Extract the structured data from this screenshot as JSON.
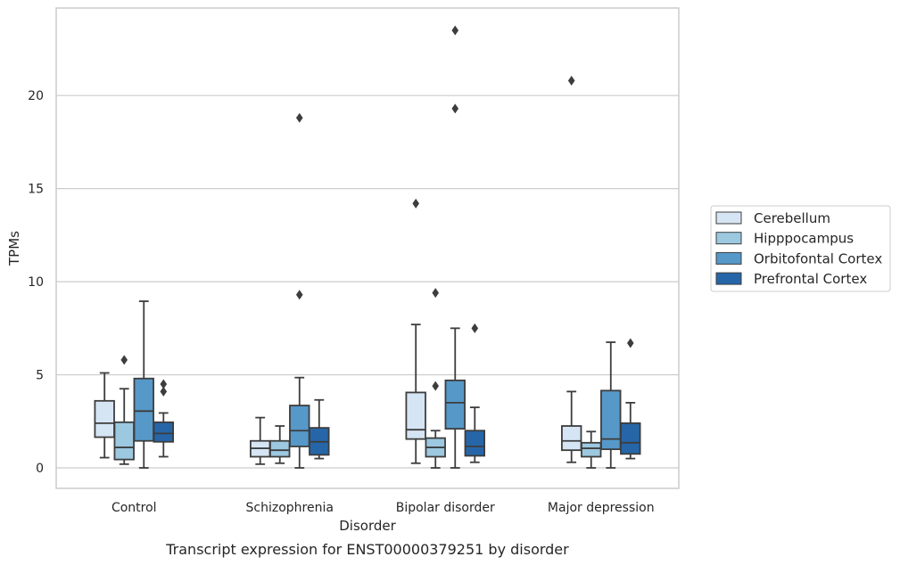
{
  "chart_data": {
    "type": "box",
    "title": "",
    "caption": "Transcript expression for ENST00000379251 by disorder",
    "xlabel": "Disorder",
    "ylabel": "TPMs",
    "ylim": [
      -1.1,
      24.7
    ],
    "yticks": [
      "0",
      "5",
      "10",
      "15",
      "20"
    ],
    "ytick_values": [
      0,
      5,
      10,
      15,
      20
    ],
    "grid": "horizontal",
    "legend_position": "right",
    "categories": [
      "Control",
      "Schizophrenia",
      "Bipolar disorder",
      "Major depression"
    ],
    "series": [
      {
        "name": "Cerebellum",
        "color": "#d6e5f4",
        "boxes": [
          {
            "whislo": 0.55,
            "q1": 1.65,
            "med": 2.4,
            "q3": 3.6,
            "whishi": 5.1,
            "fliers": []
          },
          {
            "whislo": 0.2,
            "q1": 0.6,
            "med": 1.05,
            "q3": 1.45,
            "whishi": 2.7,
            "fliers": []
          },
          {
            "whislo": 0.25,
            "q1": 1.55,
            "med": 2.05,
            "q3": 4.05,
            "whishi": 7.7,
            "fliers": [
              14.2
            ]
          },
          {
            "whislo": 0.3,
            "q1": 0.95,
            "med": 1.45,
            "q3": 2.25,
            "whishi": 4.1,
            "fliers": [
              20.8
            ]
          }
        ]
      },
      {
        "name": "Hipppocampus",
        "color": "#9cc8e0",
        "boxes": [
          {
            "whislo": 0.2,
            "q1": 0.45,
            "med": 1.1,
            "q3": 2.45,
            "whishi": 4.25,
            "fliers": [
              5.8
            ]
          },
          {
            "whislo": 0.25,
            "q1": 0.6,
            "med": 0.95,
            "q3": 1.45,
            "whishi": 2.25,
            "fliers": []
          },
          {
            "whislo": 0.0,
            "q1": 0.6,
            "med": 1.1,
            "q3": 1.6,
            "whishi": 2.0,
            "fliers": [
              4.4,
              9.4
            ]
          },
          {
            "whislo": 0.0,
            "q1": 0.6,
            "med": 1.05,
            "q3": 1.35,
            "whishi": 1.95,
            "fliers": []
          }
        ]
      },
      {
        "name": "Orbitofontal Cortex",
        "color": "#5698c8",
        "boxes": [
          {
            "whislo": 0.0,
            "q1": 1.45,
            "med": 3.05,
            "q3": 4.8,
            "whishi": 8.95,
            "fliers": []
          },
          {
            "whislo": 0.0,
            "q1": 1.15,
            "med": 2.0,
            "q3": 3.35,
            "whishi": 4.85,
            "fliers": [
              9.3,
              18.8
            ]
          },
          {
            "whislo": 0.0,
            "q1": 2.1,
            "med": 3.5,
            "q3": 4.7,
            "whishi": 7.5,
            "fliers": [
              19.3,
              23.5
            ]
          },
          {
            "whislo": 0.0,
            "q1": 1.0,
            "med": 1.55,
            "q3": 4.15,
            "whishi": 6.75,
            "fliers": []
          }
        ]
      },
      {
        "name": "Prefrontal Cortex",
        "color": "#2666a8",
        "boxes": [
          {
            "whislo": 0.6,
            "q1": 1.4,
            "med": 1.85,
            "q3": 2.45,
            "whishi": 2.95,
            "fliers": [
              4.1,
              4.5
            ]
          },
          {
            "whislo": 0.5,
            "q1": 0.7,
            "med": 1.4,
            "q3": 2.15,
            "whishi": 3.65,
            "fliers": []
          },
          {
            "whislo": 0.3,
            "q1": 0.65,
            "med": 1.15,
            "q3": 2.0,
            "whishi": 3.25,
            "fliers": [
              7.5
            ]
          },
          {
            "whislo": 0.5,
            "q1": 0.75,
            "med": 1.35,
            "q3": 2.4,
            "whishi": 3.5,
            "fliers": [
              6.7
            ]
          }
        ]
      }
    ]
  }
}
